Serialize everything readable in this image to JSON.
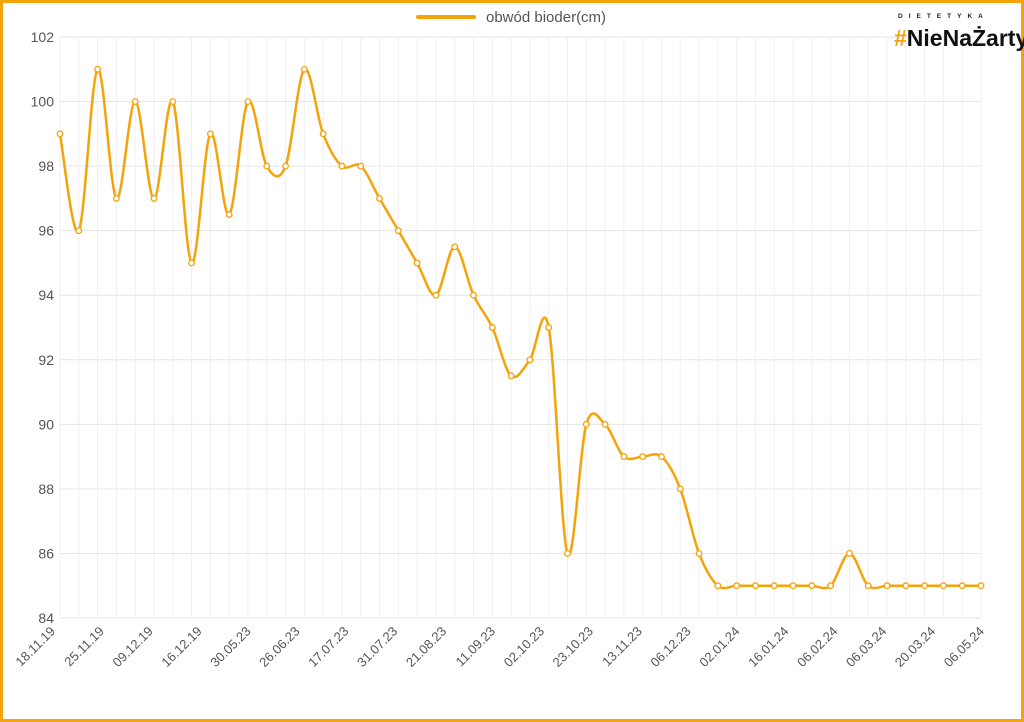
{
  "brand": {
    "tagline": "DIETETYKA",
    "hash": "#",
    "name": "NieNaŻarty",
    "accent_color": "#f5a30a"
  },
  "chart_data": {
    "type": "line",
    "title": "",
    "xlabel": "",
    "ylabel": "",
    "ylim": [
      84,
      102
    ],
    "yticks": [
      84,
      86,
      88,
      90,
      92,
      94,
      96,
      98,
      100,
      102
    ],
    "grid": true,
    "legend_position": "top-center",
    "line_color": "#f5a30a",
    "smooth": true,
    "x_tick_labels": [
      "18.11.19",
      "25.11.19",
      "09.12.19",
      "16.12.19",
      "30.05.23",
      "26.06.23",
      "17.07.23",
      "31.07.23",
      "21.08.23",
      "11.09.23",
      "02.10.23",
      "23.10.23",
      "13.11.23",
      "06.12.23",
      "02.01.24",
      "16.01.24",
      "06.02.24",
      "06.03.24",
      "20.03.24",
      "06.05.24"
    ],
    "series": [
      {
        "name": "obwód bioder(cm)",
        "values": [
          99,
          96,
          101,
          97,
          100,
          97,
          100,
          95,
          99,
          96.5,
          100,
          98,
          98,
          101,
          99,
          98,
          98,
          97,
          96,
          95,
          94,
          95.5,
          94,
          93,
          91.5,
          92,
          93,
          86,
          90,
          90,
          89,
          89,
          89,
          88,
          86,
          85,
          85,
          85,
          85,
          85,
          85,
          85,
          86,
          85,
          85,
          85,
          85,
          85,
          85,
          85
        ]
      }
    ]
  }
}
